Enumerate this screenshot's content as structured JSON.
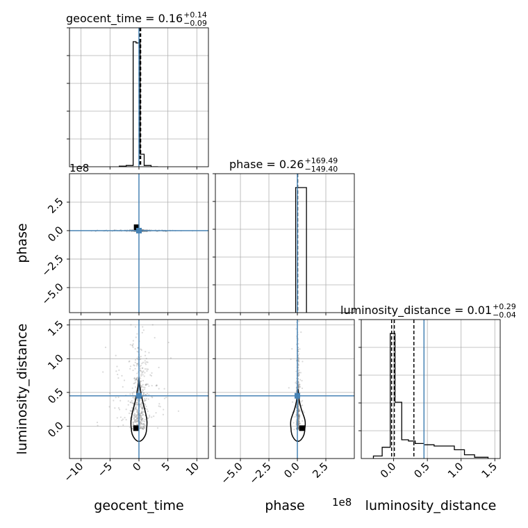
{
  "chart_data": {
    "type": "corner",
    "parameters": [
      "geocent_time",
      "phase",
      "luminosity_distance"
    ],
    "axis_labels": {
      "geocent_time": "geocent_time",
      "phase": "phase",
      "luminosity_distance": "luminosity_distance"
    },
    "titles": [
      {
        "param": "geocent_time",
        "prefix": "geocent_time = 0.16",
        "upper": "+0.14",
        "lower": "−0.09"
      },
      {
        "param": "phase",
        "prefix": "phase = 0.26",
        "upper": "+169.49",
        "lower": "−149.40"
      },
      {
        "param": "luminosity_distance",
        "prefix": "luminosity_distance = 0.01",
        "upper": "+0.29",
        "lower": "−0.04"
      }
    ],
    "ranges": {
      "geocent_time": [
        -12.0,
        12.0
      ],
      "phase": [
        -72000000,
        50000000
      ],
      "luminosity_distance": [
        -0.48,
        1.58
      ]
    },
    "offset_labels": {
      "phase_y": "1e8",
      "phase_x": "1e8"
    },
    "ticks": {
      "geocent_time": {
        "values": [
          -10,
          -5,
          0,
          5,
          10
        ],
        "labels": [
          "−10",
          "−5",
          "0",
          "5",
          "10"
        ]
      },
      "phase": {
        "values": [
          -50000000,
          -25000000,
          0,
          25000000
        ],
        "labels": [
          "−5.0",
          "−2.5",
          "0.0",
          "2.5"
        ]
      },
      "luminosity_distance": {
        "values": [
          0,
          0.5,
          1.0,
          1.5
        ],
        "labels": [
          "0.0",
          "0.5",
          "1.0",
          "1.5"
        ]
      }
    },
    "truths": {
      "geocent_time": 0.0,
      "phase": 0.0,
      "luminosity_distance": 0.45
    },
    "quantiles": {
      "geocent_time": [
        0.07,
        0.16,
        0.3
      ],
      "phase": [
        -149140000,
        260000,
        169750000
      ],
      "luminosity_distance": [
        -0.03,
        0.01,
        0.3
      ]
    },
    "histograms": {
      "geocent_time": {
        "edges": [
          -3.4,
          -2.2,
          -1.0,
          -0.5,
          0.2,
          0.9,
          2.1,
          3.3
        ],
        "counts": [
          0.005,
          0.01,
          1.0,
          0.99,
          0.1,
          0.01,
          0.0
        ]
      },
      "phase": {
        "edges": [
          -1500000,
          500000,
          8000000
        ],
        "counts": [
          1.0,
          1.0
        ]
      },
      "luminosity_distance": {
        "edges": [
          -0.3,
          -0.17,
          -0.05,
          0.02,
          0.12,
          0.22,
          0.32,
          0.45,
          0.6,
          0.75,
          0.9,
          1.05,
          1.2,
          1.4
        ],
        "counts": [
          0.02,
          0.09,
          1.0,
          0.45,
          0.15,
          0.14,
          0.12,
          0.11,
          0.1,
          0.1,
          0.07,
          0.03,
          0.01
        ]
      }
    },
    "scatter_extent": {
      "geocent_time": [
        -7,
        9
      ],
      "luminosity_distance": [
        -0.25,
        1.3
      ]
    },
    "peak_markers": {
      "geocent_time_vs_phase": [
        -0.4,
        3000000
      ],
      "geocent_time_vs_luminosity_distance": [
        -0.5,
        -0.03
      ],
      "phase_vs_luminosity_distance": [
        4000000,
        -0.03
      ]
    },
    "colors": {
      "truth": "#4682b4",
      "histogram": "#000000",
      "grid": "#b0b0b0",
      "scatter": "#808080",
      "frame": "#000000"
    }
  }
}
